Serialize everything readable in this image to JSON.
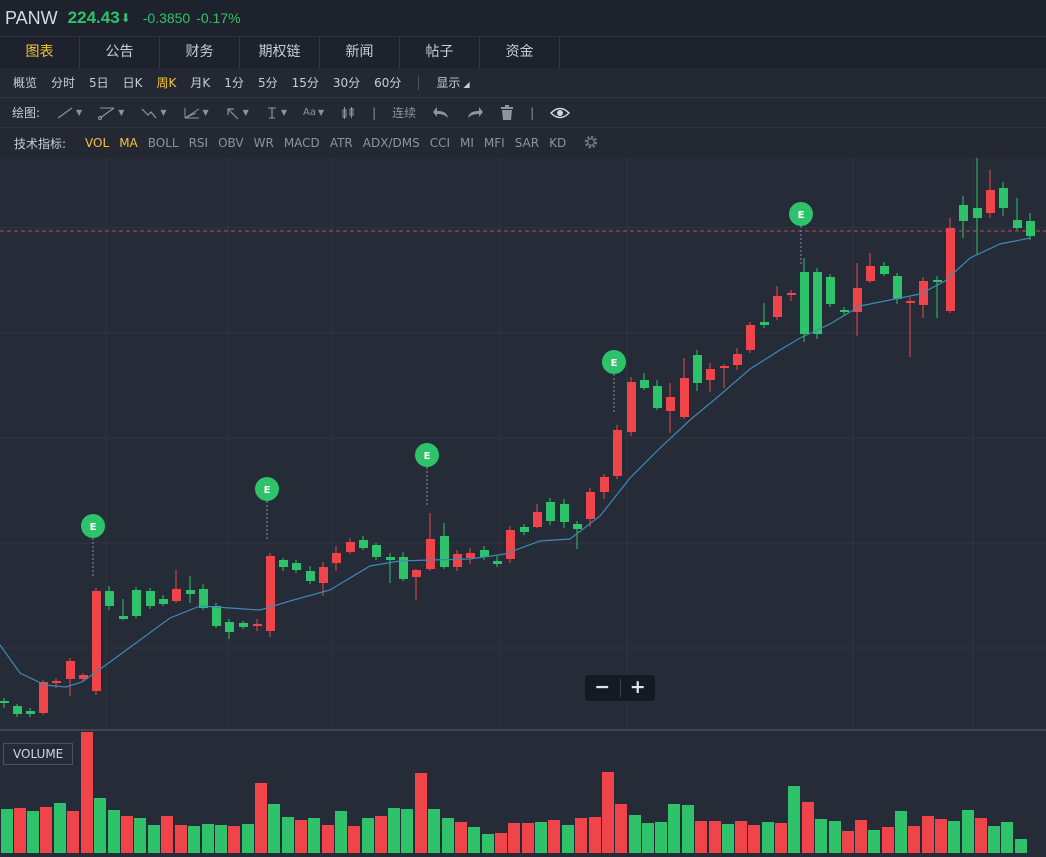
{
  "header": {
    "symbol": "PANW",
    "price": "224.43",
    "price_arrow": "⬇",
    "change": "-0.3850",
    "change_pct": "-0.17%"
  },
  "tabs": [
    {
      "label": "图表",
      "active": true
    },
    {
      "label": "公告"
    },
    {
      "label": "财务"
    },
    {
      "label": "期权链"
    },
    {
      "label": "新闻"
    },
    {
      "label": "帖子"
    },
    {
      "label": "资金"
    }
  ],
  "periods": [
    "概览",
    "分时",
    "5日",
    "日K",
    "周K",
    "月K",
    "1分",
    "5分",
    "15分",
    "30分",
    "60分"
  ],
  "active_period": "周K",
  "display_label": "显示",
  "toolbar": {
    "label": "绘图:",
    "icons": [
      "line-tool-icon",
      "ray-tool-icon",
      "trend-tool-icon",
      "fib-tool-icon",
      "arrow-tool-icon",
      "text-cursor-icon",
      "font-size-icon",
      "candle-tool-icon"
    ],
    "continuous_label": "连续",
    "font_icon_text": "Aa"
  },
  "indicators": {
    "label": "技术指标:",
    "items": [
      "VOL",
      "MA",
      "BOLL",
      "RSI",
      "OBV",
      "WR",
      "MACD",
      "ATR",
      "ADX/DMS",
      "CCI",
      "MI",
      "MFI",
      "SAR",
      "KD"
    ],
    "active": [
      "VOL",
      "MA"
    ]
  },
  "volume_label": "VOLUME",
  "earnings_marker": "E",
  "zoom": {
    "minus": "−",
    "plus": "+"
  },
  "colors": {
    "up": "#f0444b",
    "down": "#2ec36a",
    "accent": "#f3c43a",
    "ma": "#3d8ab4",
    "bg": "#252b37"
  }
}
